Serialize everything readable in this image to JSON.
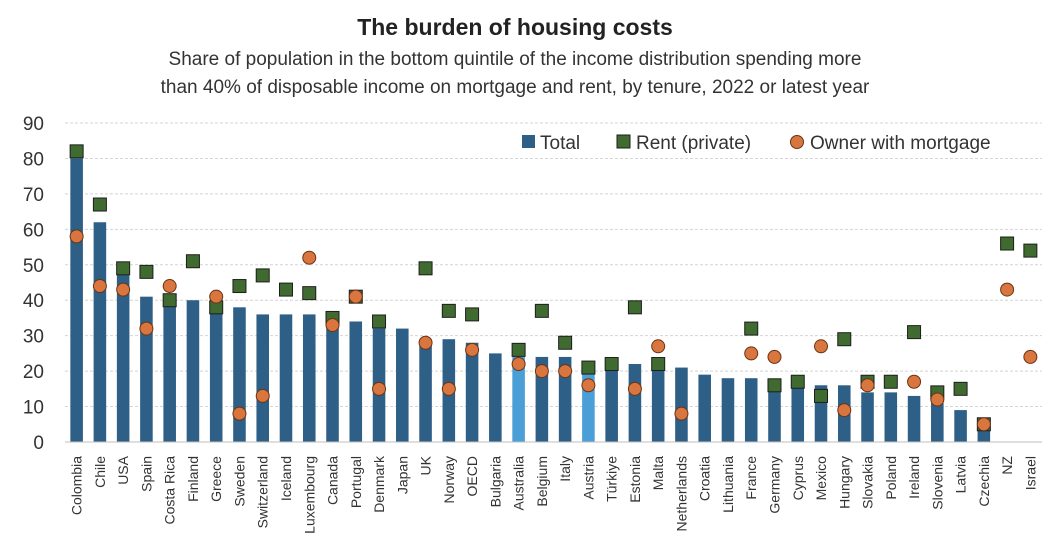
{
  "chart_data": {
    "type": "bar",
    "title": "The burden of housing costs",
    "subtitle_line1": "Share of population in the bottom quintile of the income distribution spending more",
    "subtitle_line2": "than 40% of disposable income on mortgage and rent, by tenure, 2022 or latest year",
    "ylim": [
      0,
      90
    ],
    "yticks": [
      "0",
      "10",
      "20",
      "30",
      "40",
      "50",
      "60",
      "70",
      "80",
      "90"
    ],
    "grid": true,
    "legend_position": "top-right",
    "colors": {
      "total": "#2e5f86",
      "highlight": "#4a9fd6",
      "rent": "#3f6b30",
      "owner": "#d9763f"
    },
    "highlighted": [
      "Australia",
      "Austria"
    ],
    "categories": [
      "Colombia",
      "Chile",
      "USA",
      "Spain",
      "Costa Rica",
      "Finland",
      "Greece",
      "Sweden",
      "Switzerland",
      "Iceland",
      "Luxembourg",
      "Canada",
      "Portugal",
      "Denmark",
      "Japan",
      "UK",
      "Norway",
      "OECD",
      "Bulgaria",
      "Australia",
      "Belgium",
      "Italy",
      "Austria",
      "Türkiye",
      "Estonia",
      "Malta",
      "Netherlands",
      "Croatia",
      "Lithuania",
      "France",
      "Germany",
      "Cyprus",
      "Mexico",
      "Hungary",
      "Slovakia",
      "Poland",
      "Ireland",
      "Slovenia",
      "Latvia",
      "Czechia",
      "NZ",
      "Israel"
    ],
    "series": [
      {
        "name": "Total",
        "marker": "bar",
        "values": [
          80,
          62,
          48,
          41,
          40,
          40,
          38,
          38,
          36,
          36,
          36,
          34,
          34,
          32,
          32,
          28,
          29,
          28,
          25,
          25,
          24,
          24,
          20,
          21,
          22,
          21,
          21,
          19,
          18,
          18,
          17,
          16,
          16,
          16,
          14,
          14,
          13,
          11,
          9,
          5,
          null,
          null
        ]
      },
      {
        "name": "Rent (private)",
        "marker": "square",
        "values": [
          82,
          67,
          49,
          48,
          40,
          51,
          38,
          44,
          47,
          43,
          42,
          35,
          41,
          34,
          null,
          49,
          37,
          36,
          null,
          26,
          37,
          28,
          21,
          22,
          38,
          22,
          null,
          null,
          null,
          32,
          16,
          17,
          13,
          29,
          17,
          17,
          31,
          14,
          15,
          5,
          56,
          54
        ]
      },
      {
        "name": "Owner with mortgage",
        "marker": "circle",
        "values": [
          58,
          44,
          43,
          32,
          44,
          null,
          41,
          8,
          13,
          null,
          52,
          33,
          41,
          15,
          null,
          28,
          15,
          26,
          null,
          22,
          20,
          20,
          16,
          null,
          15,
          27,
          8,
          null,
          null,
          25,
          24,
          null,
          27,
          9,
          16,
          null,
          17,
          12,
          null,
          5,
          43,
          24
        ]
      }
    ]
  }
}
